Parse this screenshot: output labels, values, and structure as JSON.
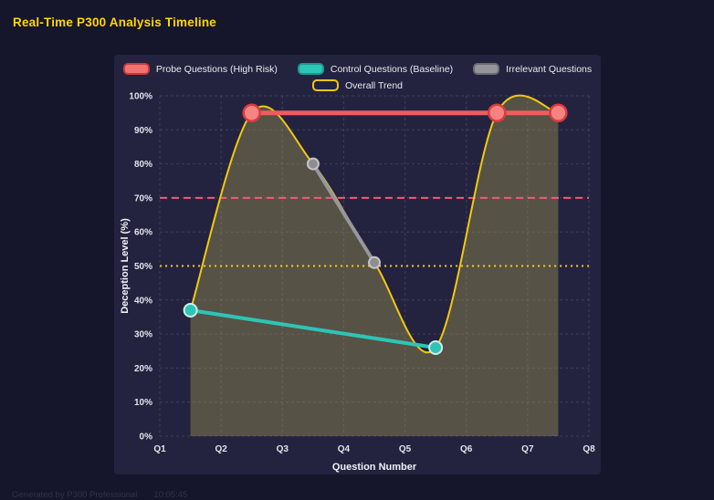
{
  "title": "Real-Time P300 Analysis Timeline",
  "footer": {
    "left": "Generated by P300 Professional",
    "time": "10:05:45"
  },
  "colors": {
    "page_background": "#15152b",
    "panel_background": "#23233f",
    "title": "#ffd700",
    "grid": "rgba(255,255,255,0.13)",
    "tick_label": "#e3e3ee",
    "axis_title": "#f0f0f5",
    "legend_label": "#e9e9f0",
    "footer": "#32324a",
    "area_fill": "rgba(170,160,80,0.38)"
  },
  "chart_data": {
    "type": "line",
    "title": "Real-Time P300 Analysis Timeline",
    "xlabel": "Question Number",
    "ylabel": "Deception Level (%)",
    "x_range": [
      1,
      8
    ],
    "x_ticks": [
      "Q1",
      "Q2",
      "Q3",
      "Q4",
      "Q5",
      "Q6",
      "Q7",
      "Q8"
    ],
    "y_range": [
      0,
      100
    ],
    "y_ticks": [
      "0%",
      "10%",
      "20%",
      "30%",
      "40%",
      "50%",
      "60%",
      "70%",
      "80%",
      "90%",
      "100%"
    ],
    "grid": true,
    "legend_position": "top",
    "series": [
      {
        "id": "probe",
        "name": "Probe Questions (High Risk)",
        "color": "#ee5d5c",
        "line_width": 5,
        "points": [
          [
            2.5,
            95
          ],
          [
            6.5,
            95
          ],
          [
            7.5,
            95
          ]
        ],
        "point_radius": 9,
        "point_fill": "#f48482",
        "point_stroke": "#da3b40",
        "point_stroke_width": 2.5,
        "legend_fill": "#f07371",
        "legend_border": "#c8393f"
      },
      {
        "id": "control",
        "name": "Control Questions (Baseline)",
        "color": "#2ec4b6",
        "line_width": 4,
        "points": [
          [
            1.5,
            37
          ],
          [
            5.5,
            26
          ]
        ],
        "point_radius": 7,
        "point_fill": "#2ec4b6",
        "point_stroke": "#cdeeea",
        "point_stroke_width": 2,
        "legend_fill": "#2ec4b6",
        "legend_border": "#1e968b"
      },
      {
        "id": "irrelevant",
        "name": "Irrelevant Questions",
        "color": "#97979c",
        "line_width": 4,
        "points": [
          [
            3.5,
            80
          ],
          [
            4.5,
            51
          ]
        ],
        "point_radius": 6,
        "point_fill": "#8d8d92",
        "point_stroke": "#c4c4c8",
        "point_stroke_width": 2,
        "legend_fill": "#94949a",
        "legend_border": "#6b6b72"
      },
      {
        "id": "trend",
        "name": "Overall Trend",
        "color": "#f2c811",
        "line_width": 2,
        "smooth": true,
        "show_points": false,
        "points": [
          [
            1.5,
            37
          ],
          [
            2.5,
            95
          ],
          [
            3.5,
            80
          ],
          [
            4.5,
            51
          ],
          [
            5.5,
            26
          ],
          [
            6.5,
            95
          ],
          [
            7.5,
            95
          ]
        ],
        "legend_fill": "#23233f",
        "legend_border": "#f2c811"
      }
    ],
    "thresholds": [
      {
        "value": 70,
        "color": "#f25c75",
        "dash": "8 5"
      },
      {
        "value": 50,
        "color": "#f2c811",
        "dash": "2 4"
      }
    ]
  }
}
